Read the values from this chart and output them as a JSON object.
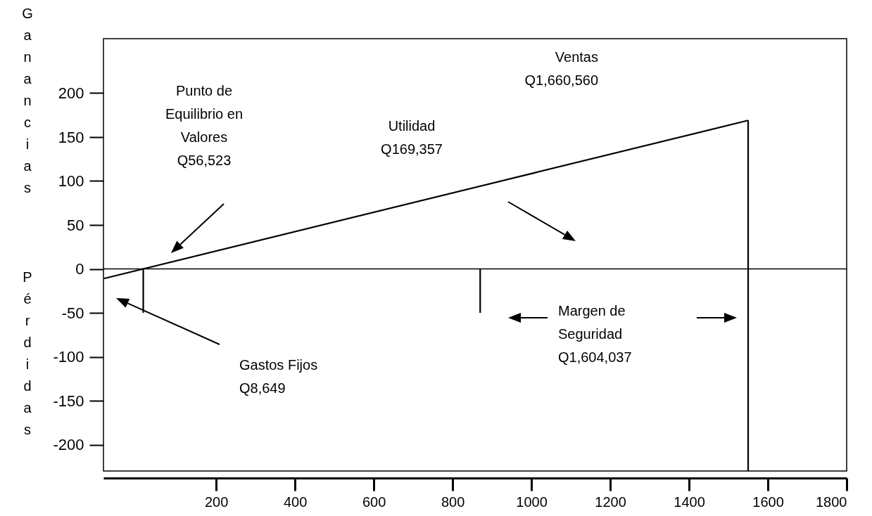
{
  "chart_data": {
    "type": "line",
    "ylabel": "Ganancias",
    "annotations": [
      "Punto de\nEquilibrio en\nValores\nQ56,523",
      "Utilidad\nQ169,357",
      "Ventas\nQ1,660,560",
      "Gastos Fijos\nQ8,649",
      "Margen de\nSeguridad\nQ1,604,037",
      "Pérdidas"
    ],
    "xlim": [
      -86,
      1800
    ],
    "ylim": [
      -230,
      262
    ],
    "xticks": [
      200,
      400,
      600,
      800,
      1000,
      1200,
      1400,
      1600,
      1800
    ],
    "yticks": [
      -200,
      -150,
      -100,
      -50,
      0,
      50,
      100,
      150,
      200
    ],
    "grid": false,
    "marker": "none",
    "line_style": "solid",
    "ref_lines": [
      {
        "axis": "y",
        "value": 0,
        "color": "#000000"
      }
    ],
    "series": [
      {
        "color": "#000000",
        "x": [
          -85,
          1550
        ],
        "values": [
          -11,
          169
        ]
      },
      {
        "color": "#000000",
        "x": [
          15,
          15
        ],
        "values": [
          0,
          -50
        ]
      },
      {
        "color": "#000000",
        "x": [
          870,
          870
        ],
        "values": [
          0,
          -50
        ]
      },
      {
        "color": "#000000",
        "x": [
          1550,
          1550
        ],
        "values": [
          169,
          -230
        ]
      }
    ]
  }
}
